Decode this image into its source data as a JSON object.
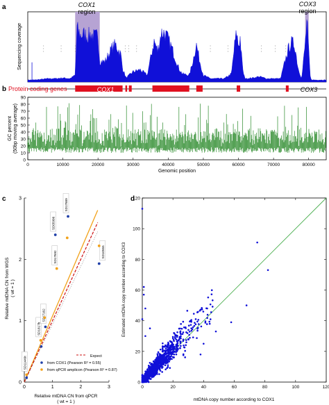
{
  "panels": {
    "a": {
      "letter": "a",
      "ylabel": "Sequencing coverage",
      "cox1_label": "COX1",
      "cox3_label": "COX3",
      "region_label": "region"
    },
    "b": {
      "letter": "b",
      "genes_label": "Protein coding genes",
      "cox1_label": "COX1",
      "cox3_label": "COX3",
      "ylabel1": "GC percent",
      "ylabel2": "(50bp moving average)",
      "xlabel": "Genomic position"
    },
    "c": {
      "letter": "c",
      "ylabel1": "Relative mtDNA CN from WGS",
      "ylabel2": "( wt = 1 )",
      "xlabel1": "Relative mtDNA CN from qPCR",
      "xlabel2": "( wt = 1 )",
      "legend_expect": "Expect",
      "legend_cox1": "from COX1 (Pearson R² = 0.55)",
      "legend_qpcr": "from qPCR amplicon (Pearson R² = 0.87)"
    },
    "d": {
      "letter": "d",
      "ylabel": "Estimated mtDNA copy number according to COX3",
      "xlabel": "mtDNA copy number according to COX1"
    }
  },
  "colors": {
    "coverage": "#1010d8",
    "region": "#b6a3d3",
    "genes": "#e01020",
    "gc": "#2a8a2a",
    "cox1_points": "#1f3fa8",
    "qpcr_points": "#f2a21a",
    "expect_line": "#cc1010",
    "diagonal": "#4caf50",
    "scatter_d": "#1010d8"
  },
  "chart_data": [
    {
      "panel": "a",
      "type": "area",
      "title": "",
      "ylabel": "Sequencing coverage",
      "xlim": [
        0,
        85000
      ],
      "yticks": [],
      "highlight_regions": [
        {
          "name": "COX1 region",
          "x": [
            13500,
            20500
          ]
        },
        {
          "name": "COX3 region",
          "x": [
            79000,
            80000
          ]
        }
      ],
      "x": [
        0,
        2000,
        4000,
        6000,
        8000,
        10000,
        12000,
        13500,
        14000,
        15000,
        16000,
        17000,
        18000,
        19000,
        20000,
        20500,
        22000,
        24000,
        25000,
        26000,
        26500,
        27000,
        28000,
        30000,
        32000,
        34000,
        36000,
        37000,
        38000,
        39000,
        40000,
        41000,
        42000,
        43000,
        44000,
        46000,
        47000,
        48000,
        49000,
        50000,
        52000,
        54000,
        56000,
        58000,
        59000,
        59500,
        60000,
        60500,
        61000,
        61500,
        62000,
        64000,
        66000,
        68000,
        70000,
        72000,
        74000,
        75000,
        76000,
        77000,
        78000,
        79000,
        79500,
        80000,
        80500,
        81000,
        83000,
        85000
      ],
      "y": [
        0.03,
        0.03,
        0.04,
        0.05,
        0.05,
        0.06,
        0.05,
        0.1,
        0.78,
        0.68,
        0.7,
        0.67,
        0.7,
        0.66,
        0.68,
        0.3,
        0.3,
        0.5,
        0.55,
        0.45,
        0.4,
        0.2,
        0.06,
        0.15,
        0.18,
        0.1,
        0.6,
        0.45,
        0.72,
        0.72,
        0.62,
        0.5,
        0.35,
        0.2,
        0.12,
        0.1,
        0.3,
        0.55,
        0.3,
        0.1,
        0.05,
        0.05,
        0.05,
        0.12,
        0.58,
        0.72,
        0.52,
        0.65,
        0.3,
        0.1,
        0.05,
        0.06,
        0.08,
        0.05,
        0.05,
        0.05,
        0.45,
        0.58,
        0.55,
        0.2,
        0.05,
        0.55,
        0.9,
        0.45,
        0.05,
        0.03,
        0.03,
        0.03
      ]
    },
    {
      "panel": "b",
      "type": "bar",
      "title": "Protein coding genes",
      "genes": [
        {
          "name": "COX1",
          "x": [
            13500,
            27000
          ]
        },
        {
          "name": "",
          "x": [
            27800,
            28300
          ]
        },
        {
          "name": "",
          "x": [
            28800,
            29600
          ]
        },
        {
          "name": "",
          "x": [
            35500,
            46000
          ]
        },
        {
          "name": "",
          "x": [
            48000,
            49800
          ]
        },
        {
          "name": "",
          "x": [
            59500,
            60500
          ]
        },
        {
          "name": "",
          "x": [
            73500,
            74300
          ]
        },
        {
          "name": "COX3",
          "x": [
            79000,
            80800
          ]
        }
      ]
    },
    {
      "panel": "b",
      "type": "bar",
      "title": "",
      "xlabel": "Genomic position",
      "ylabel": "GC percent (50bp moving average)",
      "xlim": [
        0,
        85000
      ],
      "ylim": [
        0,
        90
      ],
      "xticks": [
        0,
        10000,
        20000,
        30000,
        40000,
        50000,
        60000,
        70000,
        80000
      ],
      "yticks": [
        0,
        10,
        20,
        30,
        40,
        50,
        60,
        70,
        80,
        90
      ],
      "values_summary": {
        "typical_min": 10,
        "typical_max": 50,
        "peak_max": 82
      }
    },
    {
      "panel": "c",
      "type": "scatter",
      "title": "",
      "xlabel": "Relative mtDNA CN from qPCR ( wt = 1 )",
      "ylabel": "Relative mtDNA CN from WGS ( wt = 1 )",
      "xlim": [
        0,
        3
      ],
      "ylim": [
        0,
        3
      ],
      "xticks": [
        0,
        1,
        2,
        3
      ],
      "yticks": [
        0,
        1,
        2,
        3
      ],
      "series": [
        {
          "name": "from COX1 (Pearson R² = 0.55)",
          "points": [
            [
              0.08,
              0.07
            ],
            [
              0.6,
              0.58
            ],
            [
              0.75,
              0.9
            ],
            [
              1.1,
              2.4
            ],
            [
              1.55,
              2.7
            ],
            [
              2.65,
              1.93
            ]
          ]
        },
        {
          "name": "from qPCR amplicon (Pearson R² = 0.87)",
          "points": [
            [
              0.08,
              0.12
            ],
            [
              0.58,
              0.68
            ],
            [
              0.72,
              1.05
            ],
            [
              1.15,
              1.85
            ],
            [
              1.52,
              2.35
            ],
            [
              2.65,
              2.22
            ]
          ]
        }
      ],
      "lines": [
        {
          "name": "Expect",
          "style": "dashed",
          "points": [
            [
              0,
              0
            ],
            [
              2.6,
              2.6
            ]
          ]
        },
        {
          "name": "",
          "points": [
            [
              0,
              0
            ],
            [
              2.6,
              2.8
            ]
          ]
        }
      ],
      "sample_labels": [
        {
          "text": "SD11449t",
          "point": [
            0.08,
            0.12
          ]
        },
        {
          "text": "SD1817b",
          "point": [
            0.58,
            0.68
          ]
        },
        {
          "text": "SD17162",
          "point": [
            0.75,
            0.9
          ]
        },
        {
          "text": "SD17692",
          "point": [
            1.15,
            1.85
          ]
        },
        {
          "text": "SD05996",
          "point": [
            1.1,
            2.4
          ]
        },
        {
          "text": "SD17689",
          "point": [
            1.55,
            2.7
          ]
        },
        {
          "text": "SD10555",
          "point": [
            2.65,
            1.93
          ]
        }
      ],
      "legend": "bottom-right"
    },
    {
      "panel": "d",
      "type": "scatter",
      "title": "",
      "xlabel": "mtDNA copy number according to COX1",
      "ylabel": "Estimated mtDNA copy number according to COX3",
      "xlim": [
        0,
        120
      ],
      "ylim": [
        0,
        120
      ],
      "xticks": [
        0,
        20,
        40,
        60,
        80,
        100,
        120
      ],
      "yticks": [
        0,
        20,
        40,
        60,
        80,
        100,
        120
      ],
      "reference_line": [
        [
          0,
          0
        ],
        [
          120,
          120
        ]
      ],
      "outliers": [
        [
          0,
          113
        ],
        [
          75,
          91
        ],
        [
          82,
          73
        ],
        [
          68,
          50
        ],
        [
          1,
          62
        ],
        [
          1,
          57
        ],
        [
          2,
          30
        ],
        [
          44,
          38
        ],
        [
          40,
          25
        ],
        [
          48,
          33
        ],
        [
          30,
          28
        ],
        [
          38,
          18
        ],
        [
          5,
          35
        ],
        [
          0,
          41
        ],
        [
          58,
          39
        ],
        [
          2,
          48
        ]
      ],
      "cluster": {
        "center": [
          12,
          14
        ],
        "spread": 7,
        "count": 900
      }
    }
  ]
}
